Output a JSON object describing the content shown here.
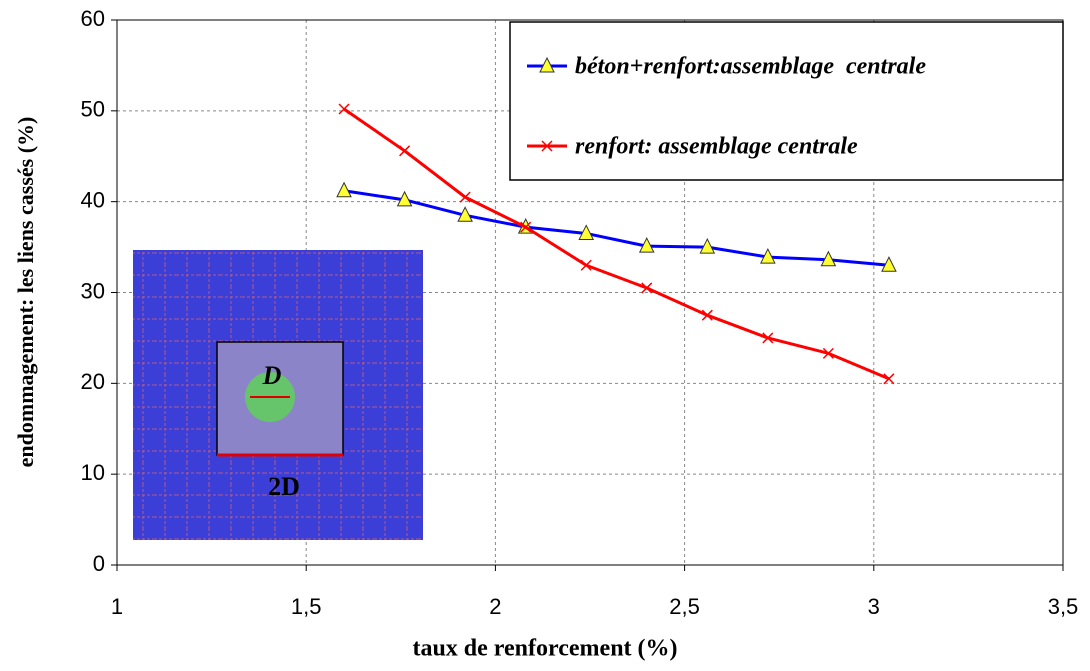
{
  "chart_data": {
    "type": "line",
    "xlabel": "taux de renforcement (%)",
    "ylabel": "endommagement: les liens cassés (%)",
    "x": [
      1.6,
      1.76,
      1.92,
      2.08,
      2.24,
      2.4,
      2.56,
      2.72,
      2.88,
      3.04
    ],
    "series": [
      {
        "name": "béton+renfort:assemblage  centrale",
        "color": "#0000ff",
        "marker": "triangle",
        "values": [
          41.2,
          40.2,
          38.5,
          37.2,
          36.5,
          35.1,
          35.0,
          33.9,
          33.6,
          33.0
        ]
      },
      {
        "name": "renfort: assemblage centrale",
        "color": "#ff0000",
        "marker": "x",
        "values": [
          50.2,
          45.6,
          40.5,
          37.2,
          33.0,
          30.5,
          27.5,
          25.0,
          23.3,
          20.5
        ]
      }
    ],
    "xlim": [
      1,
      3.5
    ],
    "ylim": [
      0,
      60
    ],
    "xticks": [
      1,
      {
        "value": 1.5,
        "label": "1,5"
      },
      2,
      {
        "value": 2.5,
        "label": "2,5"
      },
      3,
      {
        "value": 3.5,
        "label": "3,5"
      }
    ],
    "yticks": [
      0,
      10,
      20,
      30,
      40,
      50,
      60
    ],
    "grid": true,
    "legend": "upper right",
    "annotations": [
      "D",
      "2D"
    ]
  }
}
